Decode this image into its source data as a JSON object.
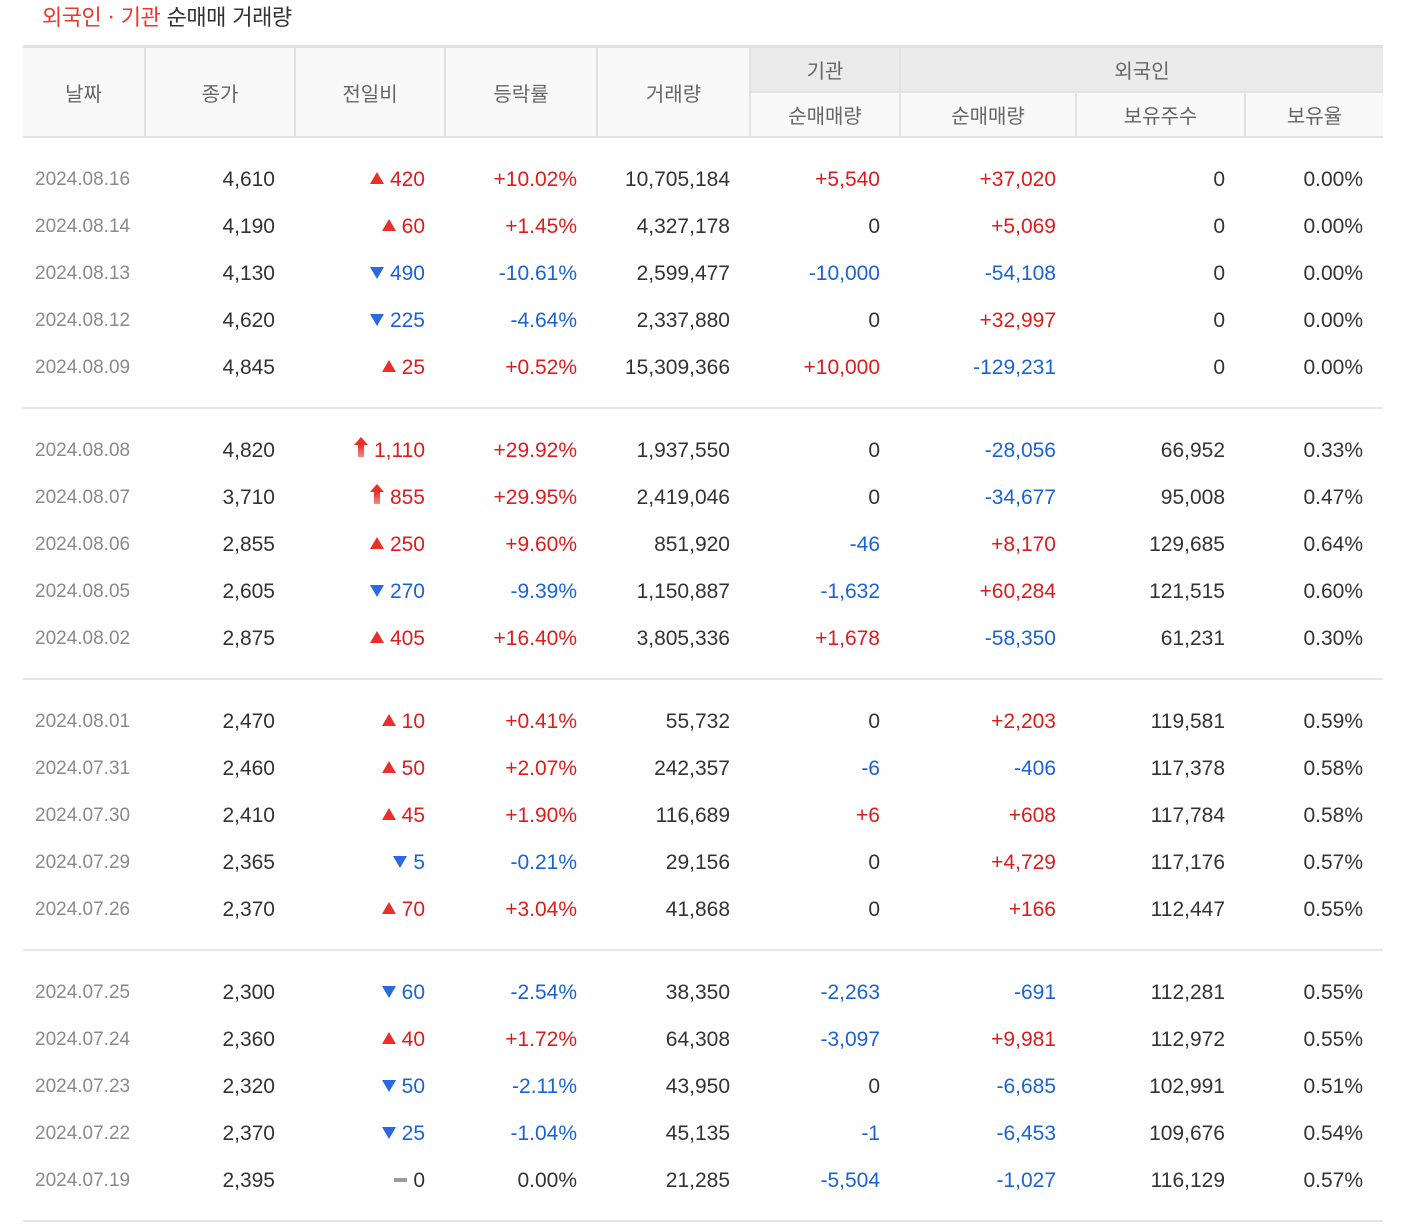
{
  "header": {
    "title_accent": "외국인 · 기관",
    "title_rest": " 순매매 거래량"
  },
  "columns": {
    "date": "날짜",
    "close": "종가",
    "change": "전일비",
    "rate": "등락률",
    "volume": "거래량",
    "inst_group": "기관",
    "foreign_group": "외국인",
    "inst_net": "순매매량",
    "foreign_net": "순매매량",
    "foreign_shares": "보유주수",
    "foreign_ratio": "보유율"
  },
  "colors": {
    "up": "#e01b1b",
    "down": "#1a63d6",
    "title_accent": "#e8392b"
  },
  "rows": [
    {
      "date": "2024.08.16",
      "close": "4,610",
      "dir": "up",
      "change": "420",
      "rate": "+10.02%",
      "volume": "10,705,184",
      "inst": "+5,540",
      "foreign": "+37,020",
      "shares": "0",
      "ratio": "0.00%"
    },
    {
      "date": "2024.08.14",
      "close": "4,190",
      "dir": "up",
      "change": "60",
      "rate": "+1.45%",
      "volume": "4,327,178",
      "inst": "0",
      "foreign": "+5,069",
      "shares": "0",
      "ratio": "0.00%"
    },
    {
      "date": "2024.08.13",
      "close": "4,130",
      "dir": "down",
      "change": "490",
      "rate": "-10.61%",
      "volume": "2,599,477",
      "inst": "-10,000",
      "foreign": "-54,108",
      "shares": "0",
      "ratio": "0.00%"
    },
    {
      "date": "2024.08.12",
      "close": "4,620",
      "dir": "down",
      "change": "225",
      "rate": "-4.64%",
      "volume": "2,337,880",
      "inst": "0",
      "foreign": "+32,997",
      "shares": "0",
      "ratio": "0.00%"
    },
    {
      "date": "2024.08.09",
      "close": "4,845",
      "dir": "up",
      "change": "25",
      "rate": "+0.52%",
      "volume": "15,309,366",
      "inst": "+10,000",
      "foreign": "-129,231",
      "shares": "0",
      "ratio": "0.00%"
    },
    {
      "date": "2024.08.08",
      "close": "4,820",
      "dir": "limit-up",
      "change": "1,110",
      "rate": "+29.92%",
      "volume": "1,937,550",
      "inst": "0",
      "foreign": "-28,056",
      "shares": "66,952",
      "ratio": "0.33%"
    },
    {
      "date": "2024.08.07",
      "close": "3,710",
      "dir": "limit-up",
      "change": "855",
      "rate": "+29.95%",
      "volume": "2,419,046",
      "inst": "0",
      "foreign": "-34,677",
      "shares": "95,008",
      "ratio": "0.47%"
    },
    {
      "date": "2024.08.06",
      "close": "2,855",
      "dir": "up",
      "change": "250",
      "rate": "+9.60%",
      "volume": "851,920",
      "inst": "-46",
      "foreign": "+8,170",
      "shares": "129,685",
      "ratio": "0.64%"
    },
    {
      "date": "2024.08.05",
      "close": "2,605",
      "dir": "down",
      "change": "270",
      "rate": "-9.39%",
      "volume": "1,150,887",
      "inst": "-1,632",
      "foreign": "+60,284",
      "shares": "121,515",
      "ratio": "0.60%"
    },
    {
      "date": "2024.08.02",
      "close": "2,875",
      "dir": "up",
      "change": "405",
      "rate": "+16.40%",
      "volume": "3,805,336",
      "inst": "+1,678",
      "foreign": "-58,350",
      "shares": "61,231",
      "ratio": "0.30%"
    },
    {
      "date": "2024.08.01",
      "close": "2,470",
      "dir": "up",
      "change": "10",
      "rate": "+0.41%",
      "volume": "55,732",
      "inst": "0",
      "foreign": "+2,203",
      "shares": "119,581",
      "ratio": "0.59%"
    },
    {
      "date": "2024.07.31",
      "close": "2,460",
      "dir": "up",
      "change": "50",
      "rate": "+2.07%",
      "volume": "242,357",
      "inst": "-6",
      "foreign": "-406",
      "shares": "117,378",
      "ratio": "0.58%"
    },
    {
      "date": "2024.07.30",
      "close": "2,410",
      "dir": "up",
      "change": "45",
      "rate": "+1.90%",
      "volume": "116,689",
      "inst": "+6",
      "foreign": "+608",
      "shares": "117,784",
      "ratio": "0.58%"
    },
    {
      "date": "2024.07.29",
      "close": "2,365",
      "dir": "down",
      "change": "5",
      "rate": "-0.21%",
      "volume": "29,156",
      "inst": "0",
      "foreign": "+4,729",
      "shares": "117,176",
      "ratio": "0.57%"
    },
    {
      "date": "2024.07.26",
      "close": "2,370",
      "dir": "up",
      "change": "70",
      "rate": "+3.04%",
      "volume": "41,868",
      "inst": "0",
      "foreign": "+166",
      "shares": "112,447",
      "ratio": "0.55%"
    },
    {
      "date": "2024.07.25",
      "close": "2,300",
      "dir": "down",
      "change": "60",
      "rate": "-2.54%",
      "volume": "38,350",
      "inst": "-2,263",
      "foreign": "-691",
      "shares": "112,281",
      "ratio": "0.55%"
    },
    {
      "date": "2024.07.24",
      "close": "2,360",
      "dir": "up",
      "change": "40",
      "rate": "+1.72%",
      "volume": "64,308",
      "inst": "-3,097",
      "foreign": "+9,981",
      "shares": "112,972",
      "ratio": "0.55%"
    },
    {
      "date": "2024.07.23",
      "close": "2,320",
      "dir": "down",
      "change": "50",
      "rate": "-2.11%",
      "volume": "43,950",
      "inst": "0",
      "foreign": "-6,685",
      "shares": "102,991",
      "ratio": "0.51%"
    },
    {
      "date": "2024.07.22",
      "close": "2,370",
      "dir": "down",
      "change": "25",
      "rate": "-1.04%",
      "volume": "45,135",
      "inst": "-1",
      "foreign": "-6,453",
      "shares": "109,676",
      "ratio": "0.54%"
    },
    {
      "date": "2024.07.19",
      "close": "2,395",
      "dir": "flat",
      "change": "0",
      "rate": "0.00%",
      "volume": "21,285",
      "inst": "-5,504",
      "foreign": "-1,027",
      "shares": "116,129",
      "ratio": "0.57%"
    }
  ]
}
